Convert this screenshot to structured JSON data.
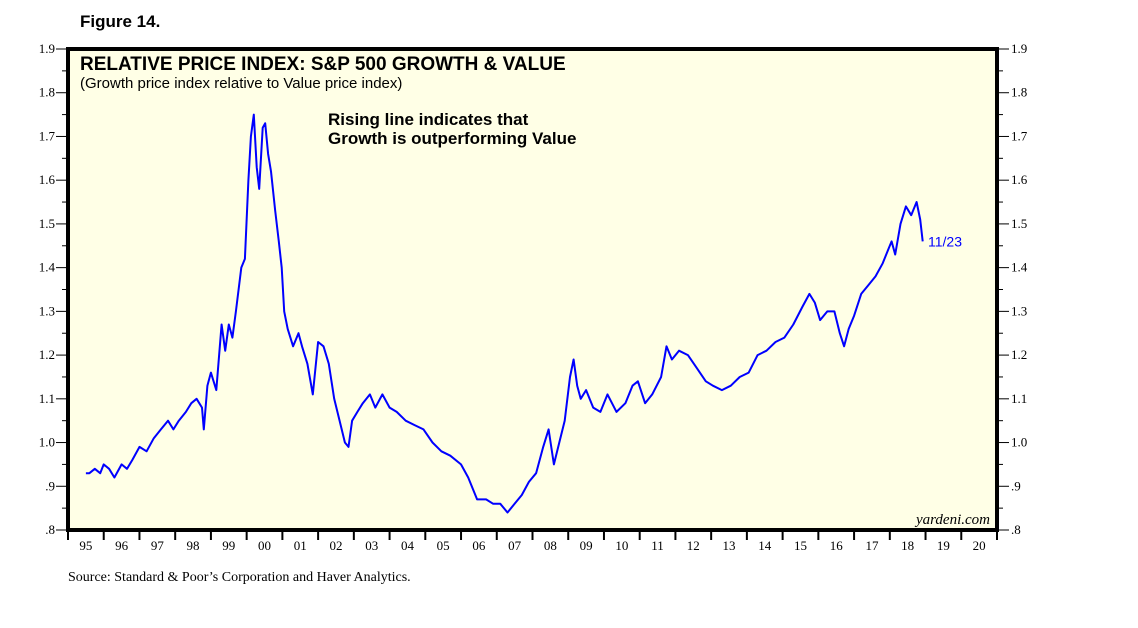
{
  "figure_label": "Figure 14.",
  "source": "Source: Standard & Poor’s Corporation and Haver Analytics.",
  "colors": {
    "line": "#0000ff",
    "plot_background": "#ffffe6",
    "frame": "#000000"
  },
  "chart_data": {
    "type": "line",
    "title": "RELATIVE PRICE INDEX: S&P 500 GROWTH & VALUE",
    "subtitle": "(Growth price index relative to Value price index)",
    "annotation": [
      "Rising line indicates that",
      "Growth is outperforming Value"
    ],
    "end_label": "11/23",
    "watermark": "yardeni.com",
    "xlabel": "",
    "ylabel": "",
    "xlim": [
      1995,
      2021
    ],
    "ylim": [
      0.8,
      1.9
    ],
    "grid": false,
    "y_ticks": [
      0.8,
      0.9,
      1.0,
      1.1,
      1.2,
      1.3,
      1.4,
      1.5,
      1.6,
      1.7,
      1.8,
      1.9
    ],
    "y_tick_labels": [
      ".8",
      ".9",
      "1.0",
      "1.1",
      "1.2",
      "1.3",
      "1.4",
      "1.5",
      "1.6",
      "1.7",
      "1.8",
      "1.9"
    ],
    "x_tick_labels": [
      "95",
      "96",
      "97",
      "98",
      "99",
      "00",
      "01",
      "02",
      "03",
      "04",
      "05",
      "06",
      "07",
      "08",
      "09",
      "10",
      "11",
      "12",
      "13",
      "14",
      "15",
      "16",
      "17",
      "18",
      "19",
      "20"
    ],
    "series": [
      {
        "name": "Growth / Value relative price index",
        "x": [
          1995.5,
          1995.6,
          1995.75,
          1995.9,
          1996.0,
          1996.15,
          1996.3,
          1996.5,
          1996.65,
          1996.8,
          1997.0,
          1997.2,
          1997.4,
          1997.6,
          1997.8,
          1997.95,
          1998.1,
          1998.3,
          1998.45,
          1998.6,
          1998.75,
          1998.8,
          1998.9,
          1999.0,
          1999.15,
          1999.3,
          1999.4,
          1999.5,
          1999.6,
          1999.7,
          1999.85,
          1999.95,
          2000.05,
          2000.12,
          2000.2,
          2000.28,
          2000.35,
          2000.45,
          2000.52,
          2000.6,
          2000.68,
          2000.8,
          2000.9,
          2000.98,
          2001.05,
          2001.15,
          2001.3,
          2001.45,
          2001.55,
          2001.7,
          2001.85,
          2002.0,
          2002.15,
          2002.3,
          2002.45,
          2002.6,
          2002.75,
          2002.85,
          2002.95,
          2003.1,
          2003.25,
          2003.45,
          2003.6,
          2003.8,
          2004.0,
          2004.2,
          2004.45,
          2004.7,
          2004.95,
          2005.2,
          2005.45,
          2005.7,
          2006.0,
          2006.2,
          2006.45,
          2006.7,
          2006.9,
          2007.1,
          2007.3,
          2007.5,
          2007.7,
          2007.9,
          2008.1,
          2008.3,
          2008.45,
          2008.6,
          2008.75,
          2008.9,
          2009.05,
          2009.15,
          2009.25,
          2009.35,
          2009.5,
          2009.7,
          2009.9,
          2010.1,
          2010.35,
          2010.6,
          2010.8,
          2010.95,
          2011.15,
          2011.35,
          2011.6,
          2011.75,
          2011.9,
          2012.1,
          2012.35,
          2012.6,
          2012.85,
          2013.05,
          2013.3,
          2013.55,
          2013.8,
          2014.05,
          2014.3,
          2014.55,
          2014.8,
          2015.05,
          2015.3,
          2015.55,
          2015.75,
          2015.9,
          2016.05,
          2016.25,
          2016.45,
          2016.6,
          2016.72,
          2016.85,
          2017.0,
          2017.2,
          2017.4,
          2017.6,
          2017.8,
          2017.95,
          2018.05,
          2018.15,
          2018.3,
          2018.45,
          2018.6,
          2018.75,
          2018.85,
          2018.92
        ],
        "values": [
          0.93,
          0.93,
          0.94,
          0.93,
          0.95,
          0.94,
          0.92,
          0.95,
          0.94,
          0.96,
          0.99,
          0.98,
          1.01,
          1.03,
          1.05,
          1.03,
          1.05,
          1.07,
          1.09,
          1.1,
          1.08,
          1.03,
          1.13,
          1.16,
          1.12,
          1.27,
          1.21,
          1.27,
          1.24,
          1.3,
          1.4,
          1.42,
          1.6,
          1.7,
          1.75,
          1.63,
          1.58,
          1.72,
          1.73,
          1.66,
          1.62,
          1.53,
          1.46,
          1.4,
          1.3,
          1.26,
          1.22,
          1.25,
          1.22,
          1.18,
          1.11,
          1.23,
          1.22,
          1.18,
          1.1,
          1.05,
          1.0,
          0.99,
          1.05,
          1.07,
          1.09,
          1.11,
          1.08,
          1.11,
          1.08,
          1.07,
          1.05,
          1.04,
          1.03,
          1.0,
          0.98,
          0.97,
          0.95,
          0.92,
          0.87,
          0.87,
          0.86,
          0.86,
          0.84,
          0.86,
          0.88,
          0.91,
          0.93,
          0.99,
          1.03,
          0.95,
          1.0,
          1.05,
          1.15,
          1.19,
          1.13,
          1.1,
          1.12,
          1.08,
          1.07,
          1.11,
          1.07,
          1.09,
          1.13,
          1.14,
          1.09,
          1.11,
          1.15,
          1.22,
          1.19,
          1.21,
          1.2,
          1.17,
          1.14,
          1.13,
          1.12,
          1.13,
          1.15,
          1.16,
          1.2,
          1.21,
          1.23,
          1.24,
          1.27,
          1.31,
          1.34,
          1.32,
          1.28,
          1.3,
          1.3,
          1.25,
          1.22,
          1.26,
          1.29,
          1.34,
          1.36,
          1.38,
          1.41,
          1.44,
          1.46,
          1.43,
          1.5,
          1.54,
          1.52,
          1.55,
          1.51,
          1.46
        ]
      }
    ]
  }
}
